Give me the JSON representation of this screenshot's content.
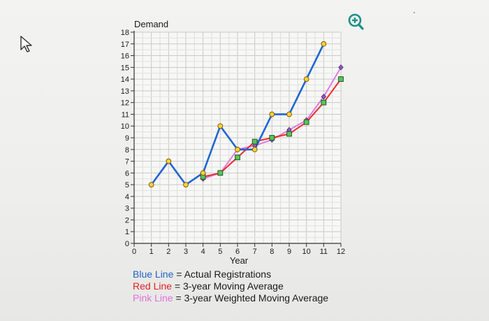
{
  "chart_data": {
    "type": "line",
    "title": "Demand",
    "xlabel": "Year",
    "ylabel": "",
    "xlim": [
      0,
      12
    ],
    "ylim": [
      0,
      18
    ],
    "xticks": [
      0,
      1,
      2,
      3,
      4,
      5,
      6,
      7,
      8,
      9,
      10,
      11,
      12
    ],
    "yticks": [
      0,
      1,
      2,
      3,
      4,
      5,
      6,
      7,
      8,
      9,
      10,
      11,
      12,
      13,
      14,
      15,
      16,
      17,
      18
    ],
    "grid": true,
    "series": [
      {
        "name": "Actual Registrations",
        "color": "#1f66d0",
        "marker": "circle",
        "x": [
          1,
          2,
          3,
          4,
          5,
          6,
          7,
          8,
          9,
          10,
          11
        ],
        "y": [
          5,
          7,
          5,
          6,
          10,
          8,
          8,
          11,
          11,
          14,
          17
        ]
      },
      {
        "name": "3-year Moving Average",
        "color": "#ee2a2a",
        "marker": "square",
        "x": [
          4,
          5,
          6,
          7,
          8,
          9,
          10,
          11,
          12
        ],
        "y": [
          5.67,
          6,
          7.33,
          8.67,
          9,
          9.33,
          10.33,
          12,
          14
        ]
      },
      {
        "name": "3-year Weighted Moving Average",
        "color": "#e27ae0",
        "marker": "diamond",
        "x": [
          4,
          5,
          6,
          7,
          8,
          9,
          10,
          11,
          12
        ],
        "y": [
          5.5,
          6,
          8,
          8.33,
          8.83,
          9.67,
          10.5,
          12.5,
          15
        ]
      }
    ]
  },
  "legend": {
    "blue": {
      "label": "Blue Line",
      "eq": " = ",
      "text": "Actual Registrations"
    },
    "red": {
      "label": "Red Line",
      "eq": " = ",
      "text": "3-year Moving Average"
    },
    "pink": {
      "label": "Pink Line",
      "eq": " = ",
      "text": "3-year Weighted Moving Average"
    }
  },
  "icons": {
    "zoom": "zoom-in-icon",
    "cursor": "mouse-pointer-icon"
  }
}
